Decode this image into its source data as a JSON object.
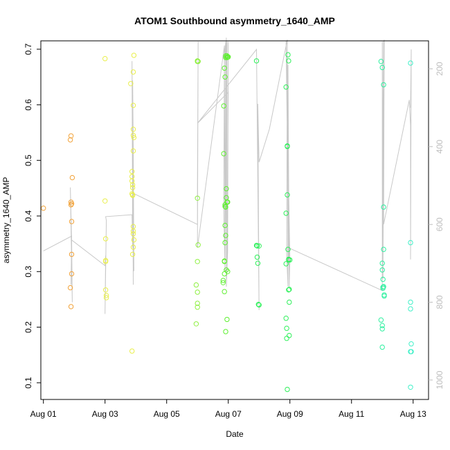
{
  "chart_data": {
    "type": "scatter",
    "title": "ATOM1 Southbound asymmetry_1640_AMP",
    "xlabel": "Date",
    "ylabel": "asymmetry_1640_AMP",
    "xlim": [
      "2023-07-31 22:00",
      "2023-08-13 12:00"
    ],
    "ylim": [
      0.07,
      0.715
    ],
    "x_ticks": [
      {
        "label": "Aug 01",
        "date": "2023-08-01 00:00"
      },
      {
        "label": "Aug 03",
        "date": "2023-08-03 00:00"
      },
      {
        "label": "Aug 05",
        "date": "2023-08-05 00:00"
      },
      {
        "label": "Aug 07",
        "date": "2023-08-07 00:00"
      },
      {
        "label": "Aug 09",
        "date": "2023-08-09 00:00"
      },
      {
        "label": "Aug 11",
        "date": "2023-08-11 00:00"
      },
      {
        "label": "Aug 13",
        "date": "2023-08-13 00:00"
      }
    ],
    "y_ticks": [
      0.1,
      0.2,
      0.3,
      0.4,
      0.5,
      0.6,
      0.7
    ],
    "y2": {
      "ticks": [
        200,
        400,
        600,
        800,
        1000
      ],
      "range": [
        128,
        1050
      ],
      "inverted": true,
      "color": "#bdbdbd"
    },
    "grid": false,
    "legend": "none",
    "point_groups": [
      {
        "color": "#f2a33a",
        "x": [
          "2023-08-01 00:00",
          "2023-08-01 21:00",
          "2023-08-01 21:00",
          "2023-08-01 21:30",
          "2023-08-01 21:30",
          "2023-08-01 21:30",
          "2023-08-01 21:30",
          "2023-08-01 22:00",
          "2023-08-01 22:00",
          "2023-08-01 22:00",
          "2023-08-01 22:00",
          "2023-08-01 22:30"
        ],
        "y": [
          0.414,
          0.537,
          0.271,
          0.237,
          0.544,
          0.425,
          0.42,
          0.422,
          0.39,
          0.296,
          0.331,
          0.469
        ]
      },
      {
        "color": "#e9ef4a",
        "x": [
          "2023-08-03 00:00",
          "2023-08-03 00:00",
          "2023-08-03 00:30",
          "2023-08-03 00:30",
          "2023-08-03 00:30",
          "2023-08-03 00:30",
          "2023-08-03 01:00",
          "2023-08-03 01:00",
          "2023-08-03 20:00",
          "2023-08-03 21:00",
          "2023-08-03 21:00",
          "2023-08-03 21:00",
          "2023-08-03 21:00",
          "2023-08-03 21:30",
          "2023-08-03 21:30",
          "2023-08-03 21:30",
          "2023-08-03 21:30",
          "2023-08-03 21:30",
          "2023-08-03 22:00",
          "2023-08-03 22:00",
          "2023-08-03 22:00",
          "2023-08-03 22:00",
          "2023-08-03 22:00",
          "2023-08-03 22:00",
          "2023-08-03 22:00",
          "2023-08-03 22:00",
          "2023-08-03 22:00",
          "2023-08-03 22:30",
          "2023-08-03 22:30",
          "2023-08-03 22:30",
          "2023-08-03 21:00"
        ],
        "y": [
          0.683,
          0.427,
          0.32,
          0.318,
          0.359,
          0.267,
          0.257,
          0.253,
          0.638,
          0.471,
          0.48,
          0.463,
          0.44,
          0.438,
          0.451,
          0.456,
          0.437,
          0.331,
          0.517,
          0.556,
          0.545,
          0.599,
          0.659,
          0.368,
          0.373,
          0.344,
          0.381,
          0.689,
          0.541,
          0.357,
          0.157
        ]
      },
      {
        "color": "#8ef040",
        "x": [
          "2023-08-05 23:00",
          "2023-08-05 23:00",
          "2023-08-06 00:00",
          "2023-08-06 00:00",
          "2023-08-06 00:00",
          "2023-08-06 00:00",
          "2023-08-06 00:00",
          "2023-08-06 00:00",
          "2023-08-06 00:00",
          "2023-08-06 00:30",
          "2023-08-06 00:30"
        ],
        "y": [
          0.276,
          0.206,
          0.678,
          0.679,
          0.432,
          0.318,
          0.243,
          0.263,
          0.236,
          0.678,
          0.348
        ]
      },
      {
        "color": "#5ef030",
        "x": [
          "2023-08-06 20:00",
          "2023-08-06 20:00",
          "2023-08-06 20:30",
          "2023-08-06 20:30",
          "2023-08-06 21:00",
          "2023-08-06 21:00",
          "2023-08-06 21:00",
          "2023-08-06 21:00",
          "2023-08-06 21:00",
          "2023-08-06 21:30",
          "2023-08-06 21:30",
          "2023-08-06 21:30",
          "2023-08-06 21:30",
          "2023-08-06 21:30",
          "2023-08-06 22:00",
          "2023-08-06 22:00",
          "2023-08-06 22:00",
          "2023-08-06 22:00",
          "2023-08-06 22:00",
          "2023-08-06 22:30",
          "2023-08-06 22:30",
          "2023-08-06 22:30",
          "2023-08-06 23:00",
          "2023-08-06 23:00",
          "2023-08-06 23:00",
          "2023-08-06 23:00",
          "2023-08-06 23:30",
          "2023-08-06 23:30",
          "2023-08-06 23:30",
          "2023-08-07 00:00"
        ],
        "y": [
          0.284,
          0.28,
          0.598,
          0.512,
          0.666,
          0.318,
          0.319,
          0.264,
          0.296,
          0.65,
          0.417,
          0.383,
          0.352,
          0.42,
          0.688,
          0.685,
          0.416,
          0.365,
          0.192,
          0.449,
          0.433,
          0.303,
          0.688,
          0.685,
          0.425,
          0.214,
          0.686,
          0.3,
          0.425,
          0.686
        ]
      },
      {
        "color": "#2ef05a",
        "x": [
          "2023-08-07 22:00",
          "2023-08-07 22:00",
          "2023-08-07 22:30",
          "2023-08-07 22:30",
          "2023-08-07 23:00",
          "2023-08-07 23:30",
          "2023-08-08 00:00",
          "2023-08-08 00:00",
          "2023-08-08 21:00",
          "2023-08-08 21:00",
          "2023-08-08 21:00",
          "2023-08-08 21:00",
          "2023-08-08 21:30",
          "2023-08-08 21:30",
          "2023-08-08 22:00",
          "2023-08-08 22:00",
          "2023-08-08 22:00",
          "2023-08-08 22:00",
          "2023-08-08 22:30",
          "2023-08-08 22:30",
          "2023-08-08 23:00",
          "2023-08-08 23:00",
          "2023-08-08 23:00",
          "2023-08-08 23:00",
          "2023-08-08 23:30",
          "2023-08-08 23:30",
          "2023-08-08 23:30",
          "2023-08-09 00:00"
        ],
        "y": [
          0.679,
          0.347,
          0.346,
          0.326,
          0.315,
          0.241,
          0.24,
          0.346,
          0.632,
          0.405,
          0.314,
          0.216,
          0.198,
          0.18,
          0.525,
          0.526,
          0.438,
          0.088,
          0.69,
          0.34,
          0.679,
          0.322,
          0.321,
          0.267,
          0.268,
          0.245,
          0.185,
          0.321
        ]
      },
      {
        "color": "#2ef0a0",
        "x": [
          "2023-08-11 23:00",
          "2023-08-11 23:00",
          "2023-08-12 00:00",
          "2023-08-12 00:00",
          "2023-08-12 00:00",
          "2023-08-12 00:00",
          "2023-08-12 00:00",
          "2023-08-12 00:00",
          "2023-08-12 00:30",
          "2023-08-12 00:30",
          "2023-08-12 00:30",
          "2023-08-12 01:00",
          "2023-08-12 01:00",
          "2023-08-12 01:00",
          "2023-08-12 01:00",
          "2023-08-12 01:30",
          "2023-08-12 01:30"
        ],
        "y": [
          0.678,
          0.213,
          0.667,
          0.315,
          0.303,
          0.203,
          0.197,
          0.164,
          0.286,
          0.272,
          0.27,
          0.636,
          0.416,
          0.34,
          0.273,
          0.258,
          0.256
        ]
      },
      {
        "color": "#40f0c8",
        "x": [
          "2023-08-12 22:00",
          "2023-08-12 22:00",
          "2023-08-12 22:00",
          "2023-08-12 22:00",
          "2023-08-12 22:30",
          "2023-08-12 22:30",
          "2023-08-12 22:00",
          "2023-08-12 22:00"
        ],
        "y": [
          0.675,
          0.352,
          0.245,
          0.233,
          0.17,
          0.156,
          0.092,
          0.156
        ]
      }
    ],
    "overlay_line": {
      "axis": "y2",
      "color": "#c8c8c8",
      "x": [
        "2023-08-01 00:00",
        "2023-08-01 22:00",
        "2023-08-01 21:30",
        "2023-08-01 22:00",
        "2023-08-01 21:00",
        "2023-08-01 22:30",
        "2023-08-01 22:00",
        "2023-08-03 00:00",
        "2023-08-03 00:30",
        "2023-08-03 00:00",
        "2023-08-03 01:00",
        "2023-08-03 00:30",
        "2023-08-03 21:00",
        "2023-08-03 21:30",
        "2023-08-03 21:00",
        "2023-08-03 22:00",
        "2023-08-03 21:30",
        "2023-08-03 22:00",
        "2023-08-03 22:30",
        "2023-08-03 22:00",
        "2023-08-06 00:00",
        "2023-08-06 00:00",
        "2023-08-06 00:30",
        "2023-08-06 00:00",
        "2023-08-06 21:00",
        "2023-08-06 20:30",
        "2023-08-06 21:30",
        "2023-08-06 21:00",
        "2023-08-06 22:00",
        "2023-08-06 21:30",
        "2023-08-06 22:30",
        "2023-08-06 22:00",
        "2023-08-06 23:00",
        "2023-08-06 22:30",
        "2023-08-06 23:30",
        "2023-08-07 00:00",
        "2023-08-06 23:00",
        "2023-08-07 00:00",
        "2023-08-06 00:00",
        "2023-08-07 22:00",
        "2023-08-08 00:00",
        "2023-08-07 23:00",
        "2023-08-08 00:00",
        "2023-08-08 08:00",
        "2023-08-08 22:00",
        "2023-08-08 21:30",
        "2023-08-08 22:30",
        "2023-08-08 22:00",
        "2023-08-08 23:00",
        "2023-08-08 22:30",
        "2023-08-08 23:30",
        "2023-08-09 00:00",
        "2023-08-08 21:00",
        "2023-08-08 23:00",
        "2023-08-12 00:00",
        "2023-08-12 00:00",
        "2023-08-12 00:30",
        "2023-08-12 00:00",
        "2023-08-12 01:00",
        "2023-08-12 00:30",
        "2023-08-12 01:30",
        "2023-08-12 01:00",
        "2023-08-12 21:00",
        "2023-08-12 22:00",
        "2023-08-12 22:00",
        "2023-08-12 22:30",
        "2023-08-12 22:00"
      ],
      "y": [
        668,
        630,
        755,
        645,
        505,
        800,
        640,
        706,
        680,
        830,
        590,
        580,
        575,
        660,
        180,
        755,
        230,
        410,
        720,
        520,
        600,
        500,
        130,
        660,
        140,
        560,
        720,
        180,
        130,
        700,
        120,
        600,
        130,
        760,
        670,
        130,
        690,
        260,
        340,
        150,
        820,
        290,
        440,
        355,
        125,
        680,
        760,
        150,
        700,
        190,
        760,
        690,
        128,
        660,
        770,
        130,
        740,
        580,
        128,
        700,
        125,
        600,
        280,
        345,
        690,
        150,
        300
      ]
    }
  }
}
